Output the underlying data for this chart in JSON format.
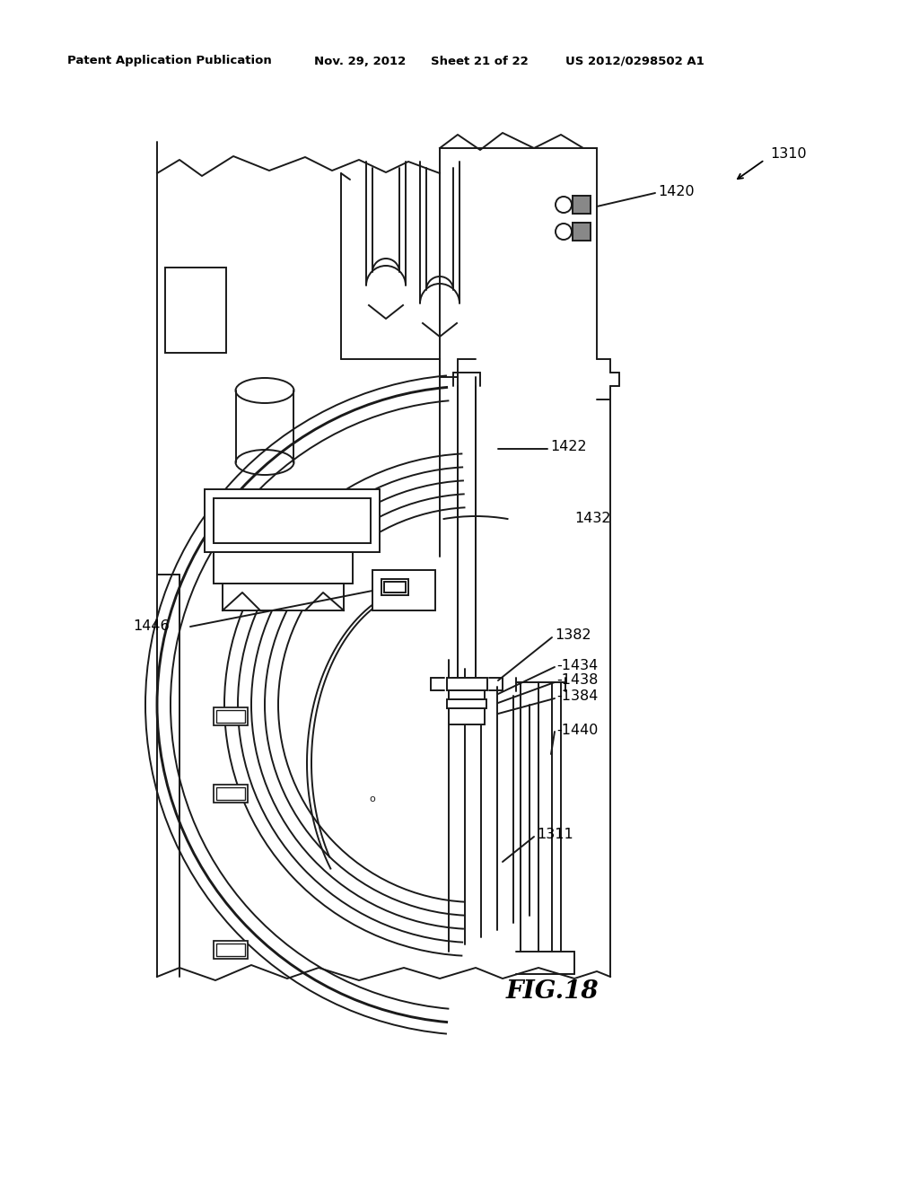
{
  "bg_color": "#ffffff",
  "header_text": "Patent Application Publication",
  "header_date": "Nov. 29, 2012",
  "header_sheet": "Sheet 21 of 22",
  "header_patent": "US 2012/0298502 A1",
  "fig_label": "FIG.18",
  "lc": "#1a1a1a",
  "lw": 1.4
}
